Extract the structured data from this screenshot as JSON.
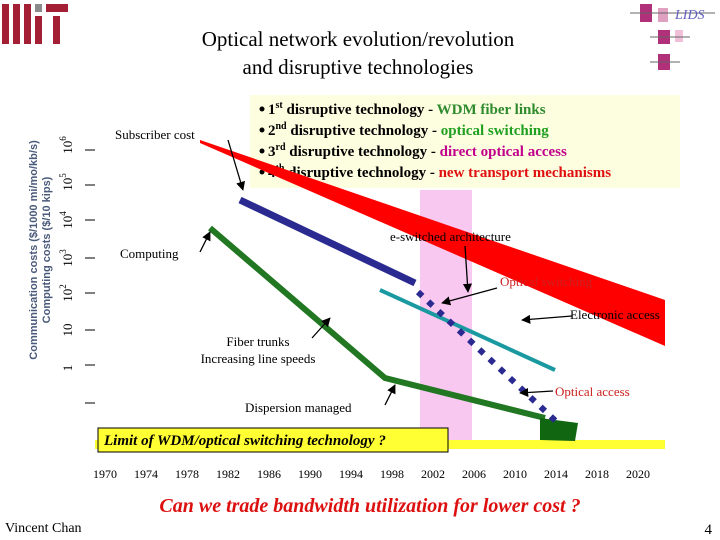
{
  "header": {
    "title_lines": [
      "Optical network evolution/revolution",
      "and disruptive technologies"
    ],
    "logo": "LIDS"
  },
  "chart": {
    "y_axis_labels": [
      "Communication costs ($/1000 mi/mo/kb/s)",
      "Computing costs ($/10 kips)"
    ],
    "y_ticks": [
      {
        "base": "1"
      },
      {
        "base": "10"
      },
      {
        "base": "10",
        "exp": "2"
      },
      {
        "base": "10",
        "exp": "3"
      },
      {
        "base": "10",
        "exp": "4"
      },
      {
        "base": "10",
        "exp": "5"
      },
      {
        "base": "10",
        "exp": "6"
      }
    ],
    "x_ticks": [
      "1970",
      "1974",
      "1978",
      "1982",
      "1986",
      "1990",
      "1994",
      "1998",
      "2002",
      "2006",
      "2010",
      "2014",
      "2018",
      "2020"
    ],
    "annotations": {
      "subscriber": "Subscriber cost",
      "computing": "Computing",
      "eswitched": "e-switched architecture",
      "optical_switching": "Optical switching",
      "electronic_access": "Electronic access",
      "fiber_trunks": [
        "Fiber trunks",
        "Increasing line speeds"
      ],
      "dispersion": "Dispersion managed",
      "optical_access": "Optical access",
      "limit": "Limit of WDM/optical switching technology ?"
    }
  },
  "bullets": [
    {
      "n": "1",
      "sup": "st",
      "text": " disruptive technology - ",
      "highlight": "WDM fiber links"
    },
    {
      "n": "2",
      "sup": "nd",
      "text": " disruptive technology - ",
      "highlight": "optical switching"
    },
    {
      "n": "3",
      "sup": "rd",
      "text": " disruptive technology - ",
      "highlight": "direct optical access"
    },
    {
      "n": "4",
      "sup": "th",
      "text": " disruptive technology - ",
      "highlight": "new transport mechanisms"
    }
  ],
  "question": "Can we trade bandwidth utilization for lower cost ?",
  "footer": {
    "author": "Vincent Chan",
    "page": "4"
  }
}
